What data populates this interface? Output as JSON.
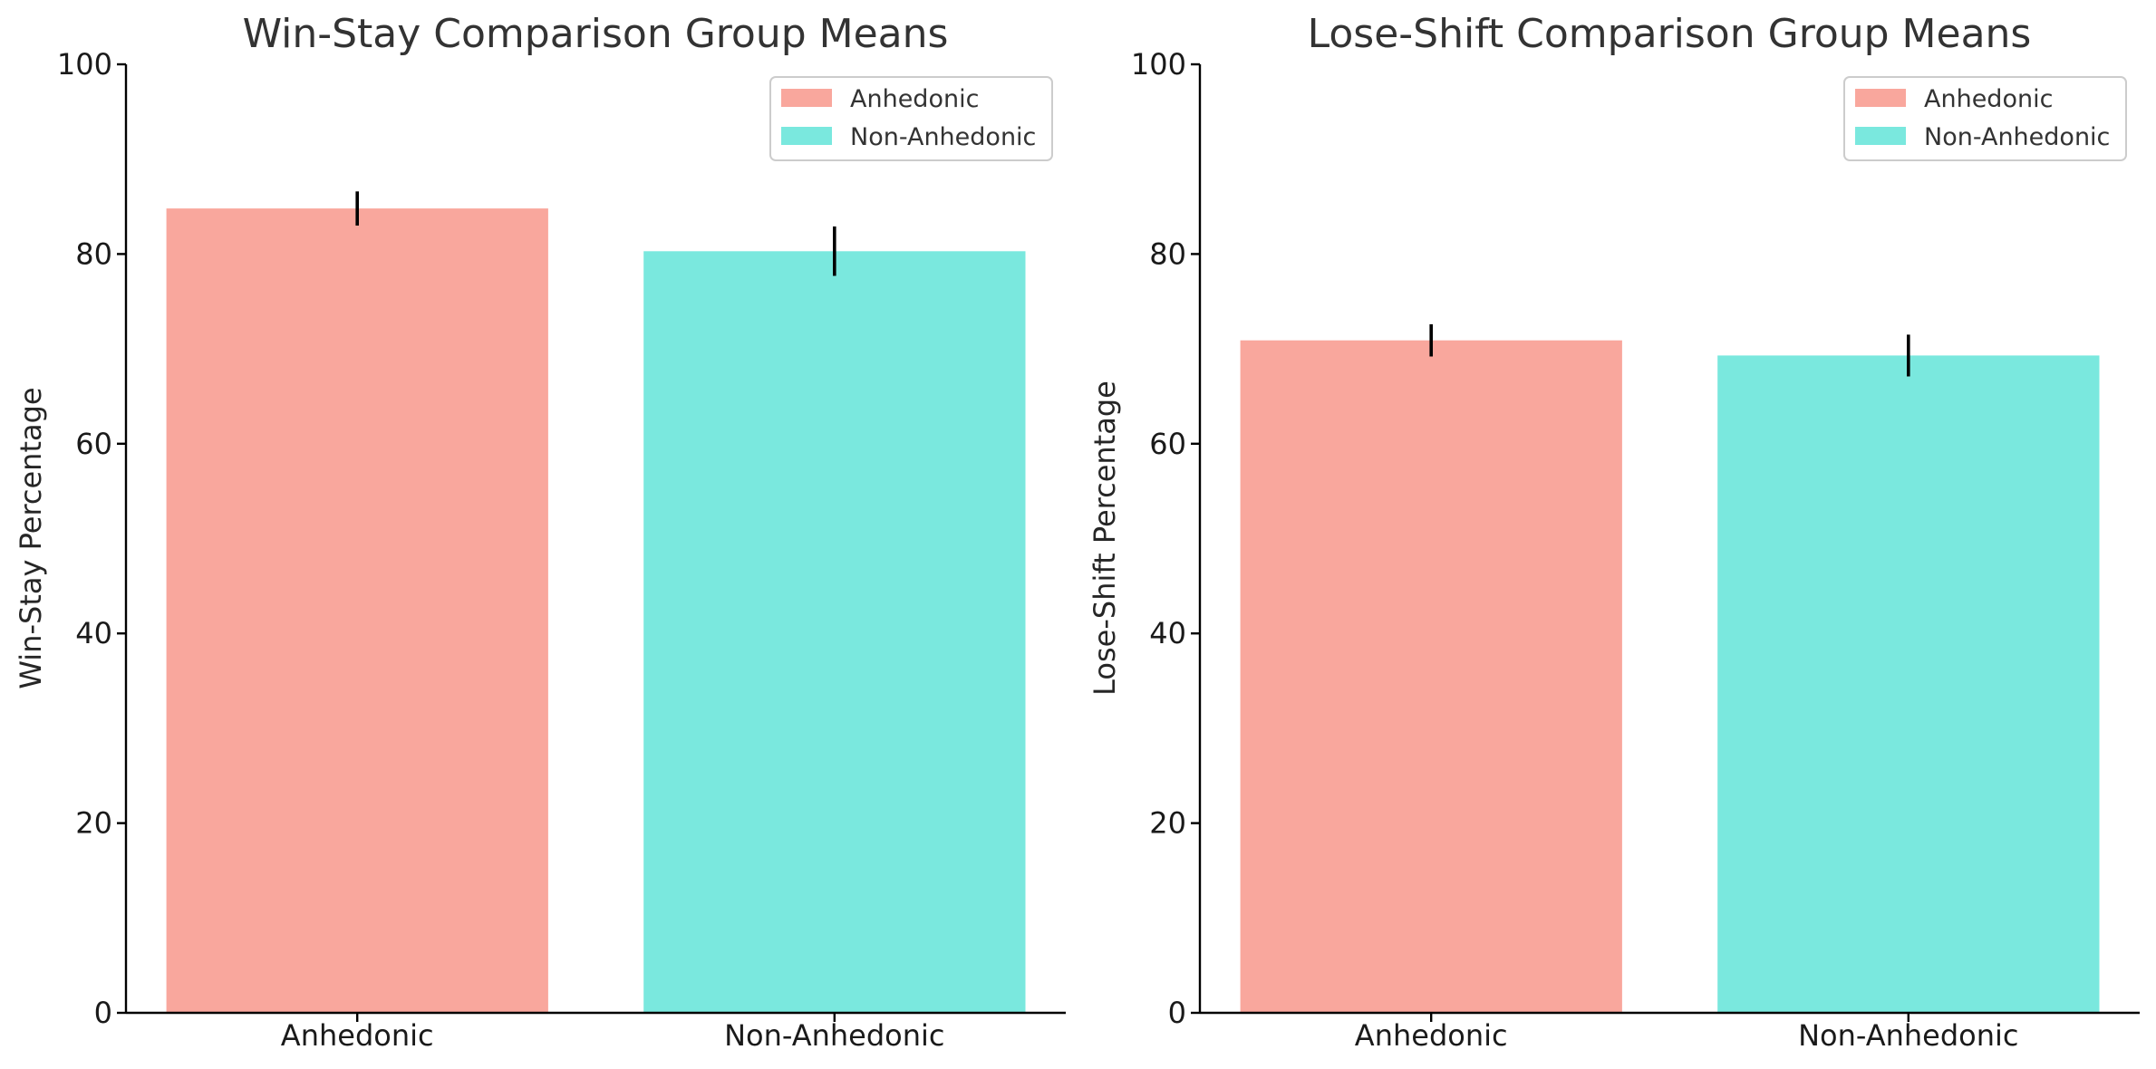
{
  "chart_data": [
    {
      "type": "bar",
      "title": "Win-Stay Comparison Group Means",
      "xlabel": "",
      "ylabel": "Win-Stay Percentage",
      "ylim": [
        0,
        100
      ],
      "yticks": [
        0,
        20,
        40,
        60,
        80,
        100
      ],
      "categories": [
        "Anhedonic",
        "Non-Anhedonic"
      ],
      "values": [
        84.8,
        80.3
      ],
      "errors": [
        1.8,
        2.6
      ],
      "colors": [
        "#f9a79d",
        "#7ae8de"
      ],
      "legend": {
        "position": "upper right",
        "entries": [
          "Anhedonic",
          "Non-Anhedonic"
        ]
      },
      "grid": false
    },
    {
      "type": "bar",
      "title": "Lose-Shift Comparison Group Means",
      "xlabel": "",
      "ylabel": "Lose-Shift Percentage",
      "ylim": [
        0,
        100
      ],
      "yticks": [
        0,
        20,
        40,
        60,
        80,
        100
      ],
      "categories": [
        "Anhedonic",
        "Non-Anhedonic"
      ],
      "values": [
        70.9,
        69.3
      ],
      "errors": [
        1.7,
        2.2
      ],
      "colors": [
        "#f9a79d",
        "#7ae8de"
      ],
      "legend": {
        "position": "upper right",
        "entries": [
          "Anhedonic",
          "Non-Anhedonic"
        ]
      },
      "grid": false
    }
  ]
}
